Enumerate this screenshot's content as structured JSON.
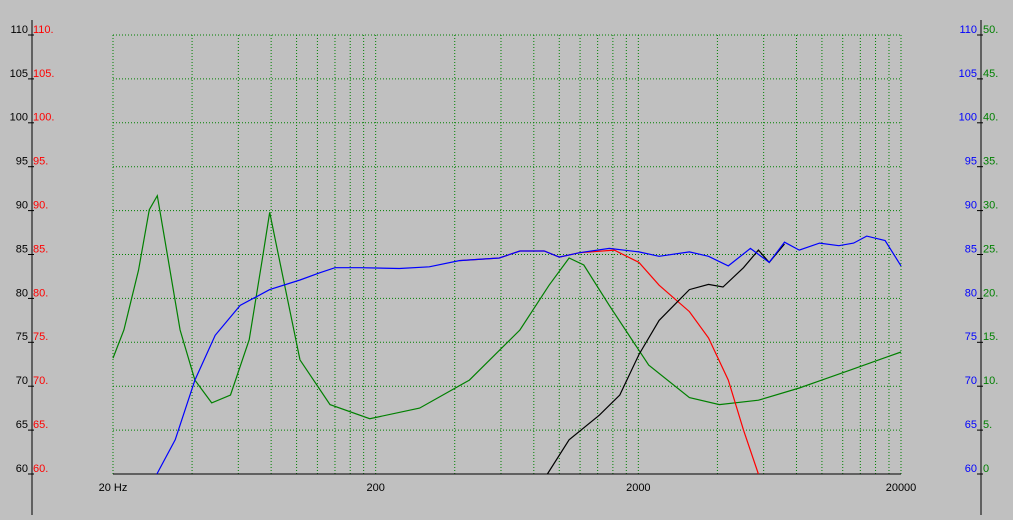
{
  "chart_data": {
    "type": "line",
    "xlog": true,
    "grid": true,
    "xlim": [
      20,
      20000
    ],
    "xticks": [
      {
        "value": 20,
        "label": "20 Hz"
      },
      200,
      2000,
      20000
    ],
    "axes": [
      {
        "side": "left",
        "color": "#000000",
        "lim": [
          60,
          110
        ],
        "ticks": [
          60,
          65,
          70,
          75,
          80,
          85,
          90,
          95,
          100,
          105,
          110
        ]
      },
      {
        "side": "left",
        "color": "#ff0000",
        "lim": [
          60,
          110
        ],
        "ticks": [
          {
            "value": 60,
            "label": "60."
          },
          {
            "value": 65,
            "label": "65."
          },
          {
            "value": 70,
            "label": "70."
          },
          {
            "value": 75,
            "label": "75."
          },
          {
            "value": 80,
            "label": "80."
          },
          {
            "value": 85,
            "label": "85."
          },
          {
            "value": 90,
            "label": "90."
          },
          {
            "value": 95,
            "label": "95."
          },
          {
            "value": 100,
            "label": "100."
          },
          {
            "value": 105,
            "label": "105."
          },
          {
            "value": 110,
            "label": "110."
          }
        ]
      },
      {
        "side": "right",
        "color": "#0000ff",
        "lim": [
          60,
          110
        ],
        "ticks": [
          60,
          65,
          70,
          75,
          80,
          85,
          90,
          95,
          100,
          105,
          110
        ]
      },
      {
        "side": "right",
        "color": "#008000",
        "lim": [
          0,
          50
        ],
        "ticks": [
          0,
          {
            "value": 5,
            "label": "5."
          },
          {
            "value": 10,
            "label": "10."
          },
          {
            "value": 15,
            "label": "15."
          },
          {
            "value": 20,
            "label": "20."
          },
          {
            "value": 25,
            "label": "25."
          },
          {
            "value": 30,
            "label": "30."
          },
          {
            "value": 35,
            "label": "35."
          },
          {
            "value": 40,
            "label": "40."
          },
          {
            "value": 45,
            "label": "45."
          },
          {
            "value": 50,
            "label": "50."
          }
        ]
      }
    ],
    "series": [
      {
        "color": "#008000",
        "axis": 3,
        "x": [
          20,
          22,
          25,
          27.5,
          29.5,
          31.5,
          36,
          41,
          47.5,
          56,
          66,
          74,
          79,
          86,
          103,
          134,
          190,
          294,
          455,
          708,
          915,
          1090,
          1240,
          1550,
          2190,
          3130,
          4070,
          5730,
          8200,
          12700,
          20000
        ],
        "values": [
          13.2,
          16.4,
          23.2,
          30.1,
          31.7,
          26.7,
          16.4,
          10.7,
          8.1,
          9,
          15.3,
          24.4,
          29.8,
          24.4,
          13,
          7.9,
          6.3,
          7.5,
          10.7,
          16.4,
          21.5,
          24.6,
          23.8,
          19.2,
          12.4,
          8.7,
          7.9,
          8.4,
          9.8,
          11.8,
          13.9
        ]
      },
      {
        "color": "#ff0000",
        "axis": 1,
        "x": [
          416,
          591,
          708,
          876,
          1000,
          1195,
          1620,
          2010,
          2400,
          3130,
          3700,
          4400,
          5030,
          5730
        ],
        "values": [
          84.3,
          84.6,
          85.4,
          85.4,
          84.7,
          85.2,
          85.5,
          84.1,
          81.5,
          78.5,
          75.5,
          70.7,
          65,
          60
        ]
      },
      {
        "color": "#000000",
        "axis": 0,
        "x": [
          901,
          1090,
          1420,
          1700,
          2010,
          2400,
          3130,
          3700,
          4200,
          5030,
          5730,
          6300,
          7200
        ],
        "values": [
          60,
          63.9,
          66.7,
          69,
          73.6,
          77.5,
          81,
          81.6,
          81.3,
          83.5,
          85.5,
          84.1,
          86.2
        ]
      },
      {
        "color": "#0000ff",
        "axis": 2,
        "x": [
          29.4,
          34.5,
          41,
          49,
          61,
          79,
          103,
          122,
          140,
          174,
          246,
          320,
          416,
          591,
          708,
          876,
          1000,
          1195,
          1550,
          2010,
          2400,
          3130,
          3700,
          4400,
          5340,
          6300,
          7200,
          8200,
          9800,
          11600,
          13200,
          14800,
          17400,
          20000
        ],
        "values": [
          60,
          63.9,
          70.7,
          75.8,
          79.2,
          81,
          82.1,
          82.9,
          83.5,
          83.5,
          83.4,
          83.6,
          84.3,
          84.6,
          85.4,
          85.4,
          84.7,
          85.2,
          85.7,
          85.3,
          84.8,
          85.3,
          84.8,
          83.7,
          85.7,
          84.1,
          86.4,
          85.5,
          86.3,
          86,
          86.3,
          87.1,
          86.6,
          83.7
        ]
      }
    ]
  }
}
